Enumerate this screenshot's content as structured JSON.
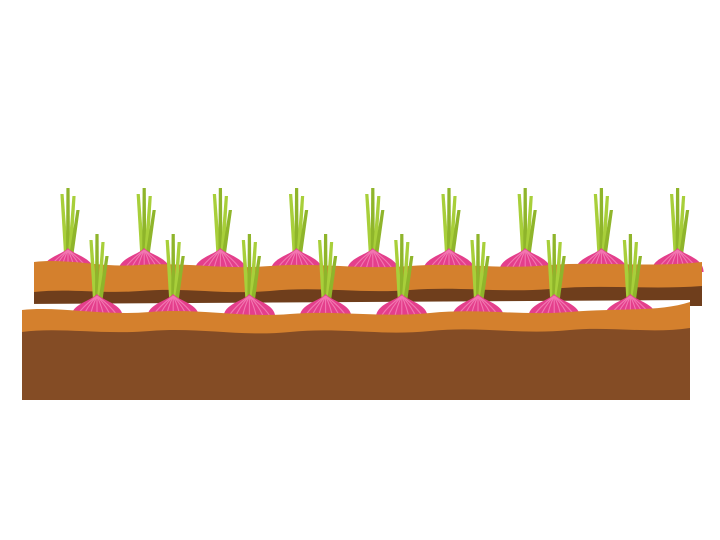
{
  "illustration": {
    "subject": "onion-garden-beds",
    "colors": {
      "background": "#ffffff",
      "soil_dark": "#844c25",
      "soil_darker": "#6f3e1c",
      "soil_light": "#d4802d",
      "bulb": "#e43f8c",
      "bulb_stripe": "#f277b1",
      "sprout": "#a8cf3a",
      "sprout_dark": "#8fb52b"
    },
    "back_row_onion_count": 9,
    "front_row_onion_count": 8
  }
}
